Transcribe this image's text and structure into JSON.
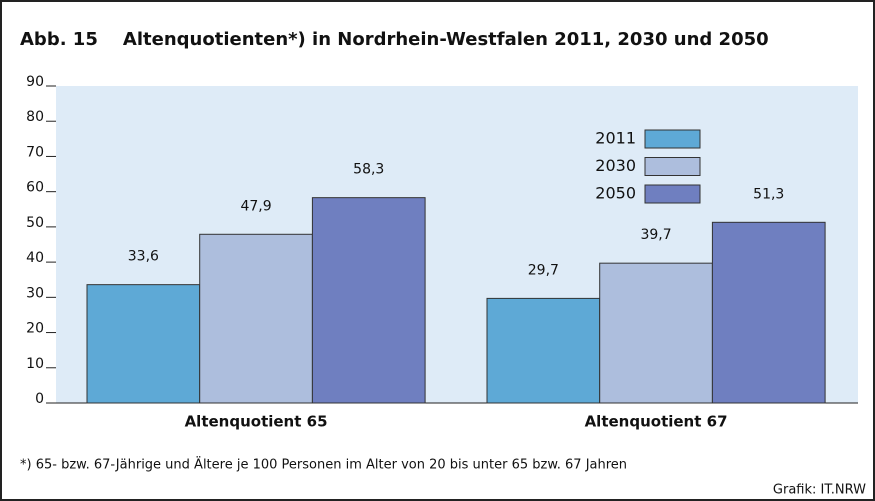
{
  "chart_data": {
    "type": "bar",
    "title": "Abb. 15    Altenquotienten*) in Nordrhein-Westfalen 2011, 2030 und 2050",
    "categories": [
      "Altenquotient 65",
      "Altenquotient 67"
    ],
    "series": [
      {
        "name": "2011",
        "color": "#5ea9d6",
        "values": [
          33.6,
          29.7
        ],
        "value_labels": [
          "33,6",
          "29,7"
        ]
      },
      {
        "name": "2030",
        "color": "#adbedd",
        "values": [
          47.9,
          39.7
        ],
        "value_labels": [
          "47,9",
          "39,7"
        ]
      },
      {
        "name": "2050",
        "color": "#6f7fc0",
        "values": [
          58.3,
          51.3
        ],
        "value_labels": [
          "58,3",
          "51,3"
        ]
      }
    ],
    "ylim": [
      0,
      90
    ],
    "yticks": [
      0,
      10,
      20,
      30,
      40,
      50,
      60,
      70,
      80,
      90
    ],
    "footnote": "*) 65- bzw. 67-Jährige und Ältere je 100 Personen im Alter von 20 bis unter 65 bzw. 67 Jahren",
    "source": "Grafik: IT.NRW"
  }
}
